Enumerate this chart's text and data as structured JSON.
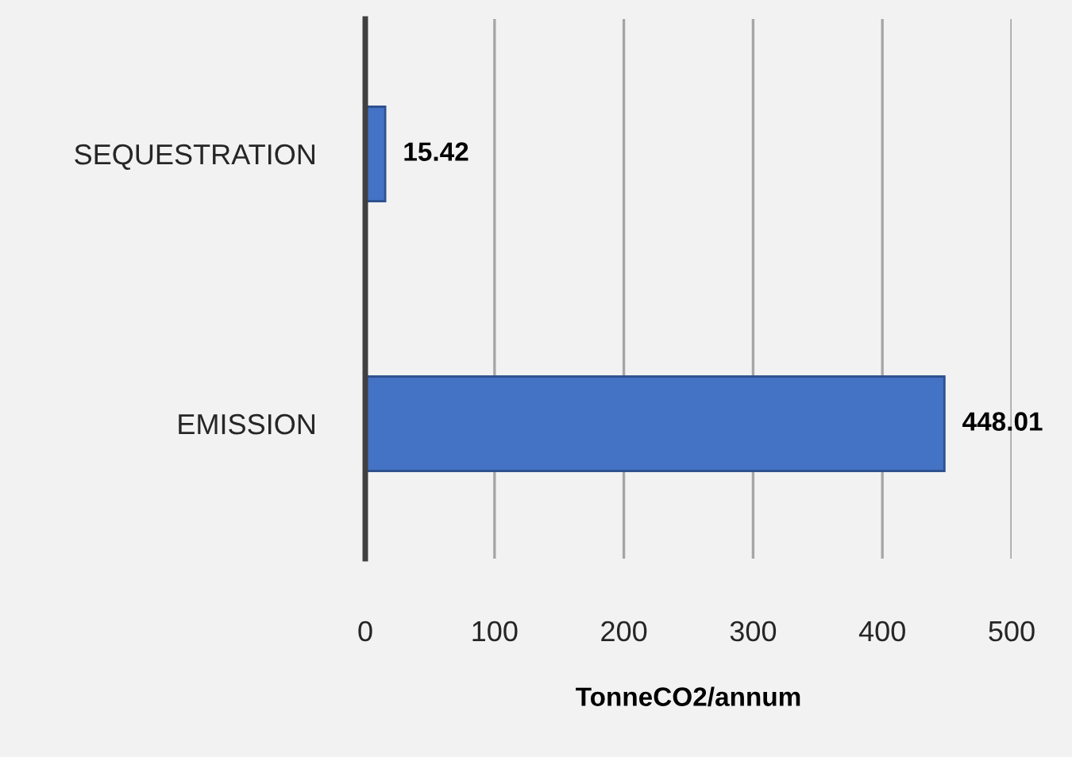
{
  "chart_data": {
    "type": "bar",
    "orientation": "horizontal",
    "categories": [
      "SEQUESTRATION",
      "EMISSION"
    ],
    "values": [
      15.42,
      448.01
    ],
    "color": "#4472c4",
    "data_labels": true,
    "xlabel": "TonneCO2/annum",
    "xlim": [
      0,
      500
    ],
    "xticks": [
      0,
      100,
      200,
      300,
      400,
      500
    ],
    "grid": "x",
    "legend": false
  }
}
